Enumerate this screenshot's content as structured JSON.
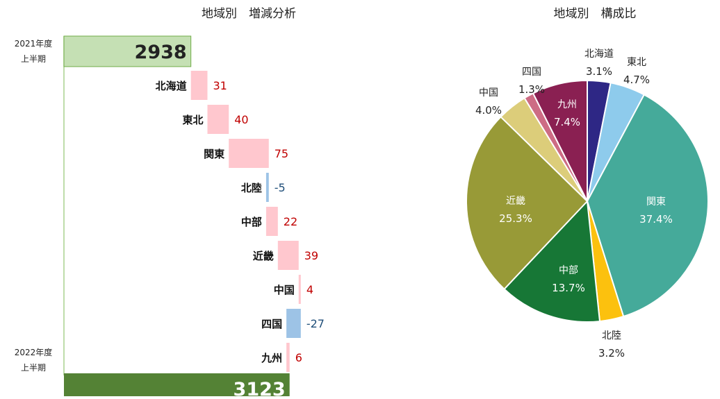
{
  "chart_data": [
    {
      "type": "bar",
      "subtype": "waterfall",
      "title": "地域別　増減分析",
      "start": {
        "label_line1": "2021年度",
        "label_line2": "上半期",
        "value": 2938
      },
      "end": {
        "label_line1": "2022年度",
        "label_line2": "上半期",
        "value": 3123
      },
      "categories": [
        "北海道",
        "東北",
        "関東",
        "北陸",
        "中部",
        "近畿",
        "中国",
        "四国",
        "九州"
      ],
      "values": [
        31,
        40,
        75,
        -5,
        22,
        39,
        4,
        -27,
        6
      ],
      "colors": {
        "start": "#c5e0b4",
        "end": "#548235",
        "increase": "#ffc7ce",
        "decrease": "#9dc3e6",
        "increase_label": "#c00000",
        "decrease_label": "#1f4e79"
      }
    },
    {
      "type": "pie",
      "title": "地域別　構成比",
      "labels": [
        "北海道",
        "東北",
        "関東",
        "北陸",
        "中部",
        "近畿",
        "中国",
        "四国",
        "九州"
      ],
      "values": [
        3.1,
        4.7,
        37.4,
        3.2,
        13.7,
        25.3,
        4.0,
        1.3,
        7.4
      ],
      "value_labels": [
        "3.1%",
        "4.7%",
        "37.4%",
        "3.2%",
        "13.7%",
        "25.3%",
        "4.0%",
        "1.3%",
        "7.4%"
      ],
      "colors": [
        "#2e2785",
        "#8ecbec",
        "#45aa9a",
        "#fcc10e",
        "#177736",
        "#989a37",
        "#dccd7a",
        "#cd6c84",
        "#8a2052"
      ]
    }
  ]
}
